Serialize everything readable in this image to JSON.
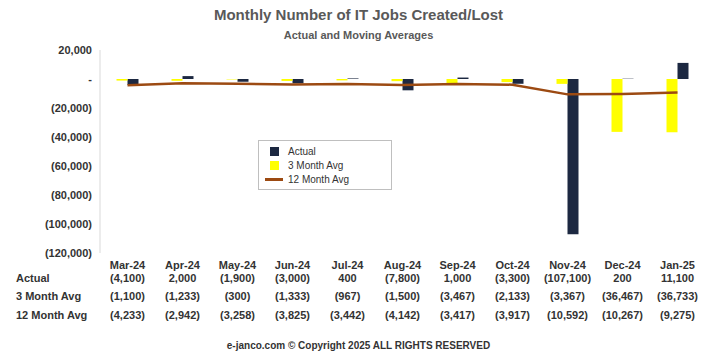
{
  "chart_data": {
    "type": "bar",
    "title": "Monthly Number of IT Jobs Created/Lost",
    "subtitle": "Actual and Moving Averages",
    "footer": "e-janco.com © Copyright 2025 ALL RIGHTS RESERVED",
    "categories": [
      "Mar-24",
      "Apr-24",
      "May-24",
      "Jun-24",
      "Jul-24",
      "Aug-24",
      "Sep-24",
      "Oct-24",
      "Nov-24",
      "Dec-24",
      "Jan-25"
    ],
    "series": [
      {
        "name": "Actual",
        "type": "bar",
        "color": "#1c2841",
        "values": [
          -4100,
          2000,
          -1900,
          -3000,
          400,
          -7800,
          1000,
          -3300,
          -107100,
          200,
          11100
        ],
        "value_labels": [
          "(4,100)",
          "2,000",
          "(1,900)",
          "(3,000)",
          "400",
          "(7,800)",
          "1,000",
          "(3,300)",
          "(107,100)",
          "200",
          "11,100"
        ]
      },
      {
        "name": "3 Month Avg",
        "type": "bar",
        "color": "#ffff00",
        "values": [
          -1100,
          -1233,
          -300,
          -1333,
          -967,
          -1500,
          -3467,
          -2133,
          -3367,
          -36467,
          -36733
        ],
        "value_labels": [
          "(1,100)",
          "(1,233)",
          "(300)",
          "(1,333)",
          "(967)",
          "(1,500)",
          "(3,467)",
          "(2,133)",
          "(3,367)",
          "(36,467)",
          "(36,733)"
        ]
      },
      {
        "name": "12 Month Avg",
        "type": "line",
        "color": "#9c4a12",
        "values": [
          -4233,
          -2942,
          -3258,
          -3825,
          -3442,
          -4142,
          -3417,
          -3917,
          -10592,
          -10267,
          -9275
        ],
        "value_labels": [
          "(4,233)",
          "(2,942)",
          "(3,258)",
          "(3,825)",
          "(3,442)",
          "(4,142)",
          "(3,417)",
          "(3,917)",
          "(10,592)",
          "(10,267)",
          "(9,275)"
        ]
      }
    ],
    "ylim": [
      -120000,
      20000
    ],
    "yticks": [
      {
        "value": 20000,
        "label": "20,000"
      },
      {
        "value": 0,
        "label": "-"
      },
      {
        "value": -20000,
        "label": "(20,000)"
      },
      {
        "value": -40000,
        "label": "(40,000)"
      },
      {
        "value": -60000,
        "label": "(60,000)"
      },
      {
        "value": -80000,
        "label": "(80,000)"
      },
      {
        "value": -100000,
        "label": "(100,000)"
      },
      {
        "value": -120000,
        "label": "(120,000)"
      }
    ],
    "grid": false,
    "legend": "center"
  }
}
